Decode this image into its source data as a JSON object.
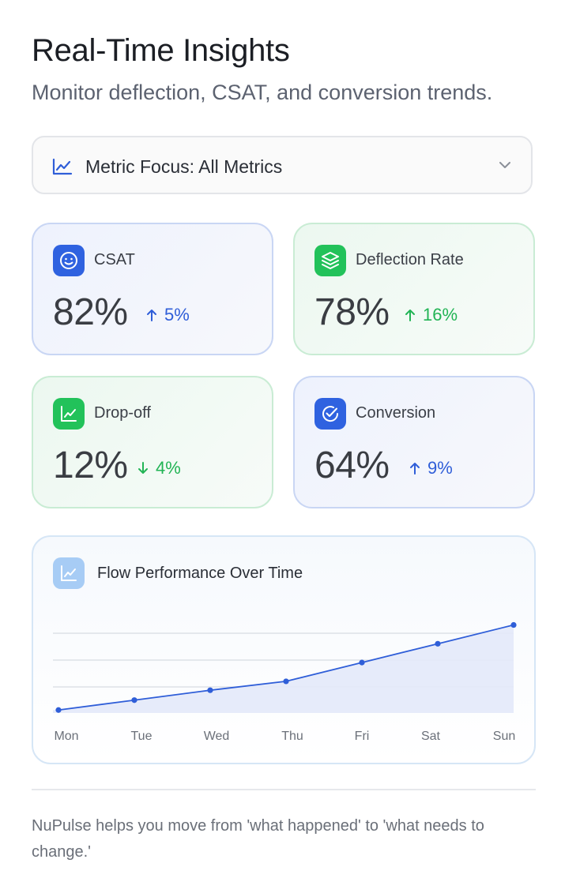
{
  "header": {
    "title": "Real-Time Insights",
    "subtitle": "Monitor deflection, CSAT, and conversion trends."
  },
  "metric_select": {
    "label": "Metric Focus: All Metrics",
    "icon": "line-chart-icon"
  },
  "metrics": [
    {
      "name": "CSAT",
      "value": "82%",
      "delta": "5%",
      "direction": "up",
      "theme": "blue",
      "icon": "smiley-icon"
    },
    {
      "name": "Deflection Rate",
      "value": "78%",
      "delta": "16%",
      "direction": "up",
      "theme": "green",
      "icon": "layers-icon"
    },
    {
      "name": "Drop-off",
      "value": "12%",
      "delta": "4%",
      "direction": "down",
      "theme": "green",
      "icon": "trend-chart-icon"
    },
    {
      "name": "Conversion",
      "value": "64%",
      "delta": "9%",
      "direction": "up",
      "theme": "blue",
      "icon": "check-circle-icon"
    }
  ],
  "chart": {
    "title": "Flow Performance Over Time",
    "icon": "trend-chart-icon"
  },
  "chart_data": {
    "type": "area",
    "title": "Flow Performance Over Time",
    "categories": [
      "Mon",
      "Tue",
      "Wed",
      "Thu",
      "Fri",
      "Sat",
      "Sun"
    ],
    "values": [
      0,
      10,
      20,
      29,
      48,
      67,
      86
    ],
    "ylim": [
      -3,
      100
    ],
    "grid": true,
    "line_color": "#2f5ed8",
    "fill_color": "#e3e9f9"
  },
  "footer": {
    "text": "NuPulse helps you move from 'what happened' to 'what needs to change.'"
  },
  "colors": {
    "blue_accent": "#2f62e0",
    "green_accent": "#22c25a"
  }
}
